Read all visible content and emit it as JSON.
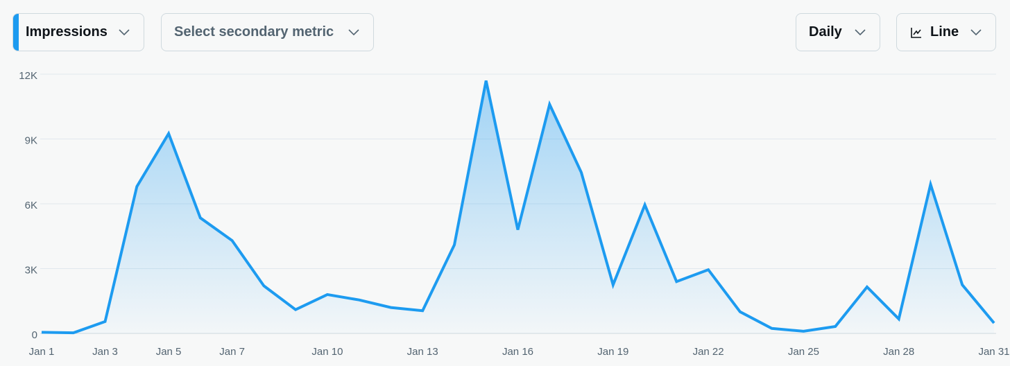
{
  "controls": {
    "primary_metric": "Impressions",
    "secondary_metric": "Select secondary metric",
    "interval": "Daily",
    "chart_style": "Line"
  },
  "chart_data": {
    "type": "line",
    "categories": [
      "Jan 1",
      null,
      "Jan 3",
      null,
      "Jan 5",
      null,
      "Jan 7",
      null,
      null,
      "Jan 10",
      null,
      null,
      "Jan 13",
      null,
      null,
      "Jan 16",
      null,
      null,
      "Jan 19",
      null,
      null,
      "Jan 22",
      null,
      null,
      "Jan 25",
      null,
      null,
      "Jan 28",
      null,
      null,
      "Jan 31"
    ],
    "values": [
      50,
      30,
      550,
      6800,
      9250,
      5350,
      4300,
      2200,
      1100,
      1800,
      1550,
      1200,
      1050,
      4100,
      11700,
      4800,
      10600,
      7450,
      2250,
      5950,
      2400,
      2950,
      1000,
      230,
      100,
      320,
      2150,
      670,
      6900,
      2250,
      480
    ],
    "color": "#1d9bf0",
    "ylim": [
      0,
      12000
    ],
    "yticks": [
      0,
      {
        "value": 3000,
        "label": "3K"
      },
      {
        "value": 6000,
        "label": "6K"
      },
      {
        "value": 9000,
        "label": "9K"
      },
      {
        "value": 12000,
        "label": "12K"
      }
    ],
    "grid": true
  }
}
